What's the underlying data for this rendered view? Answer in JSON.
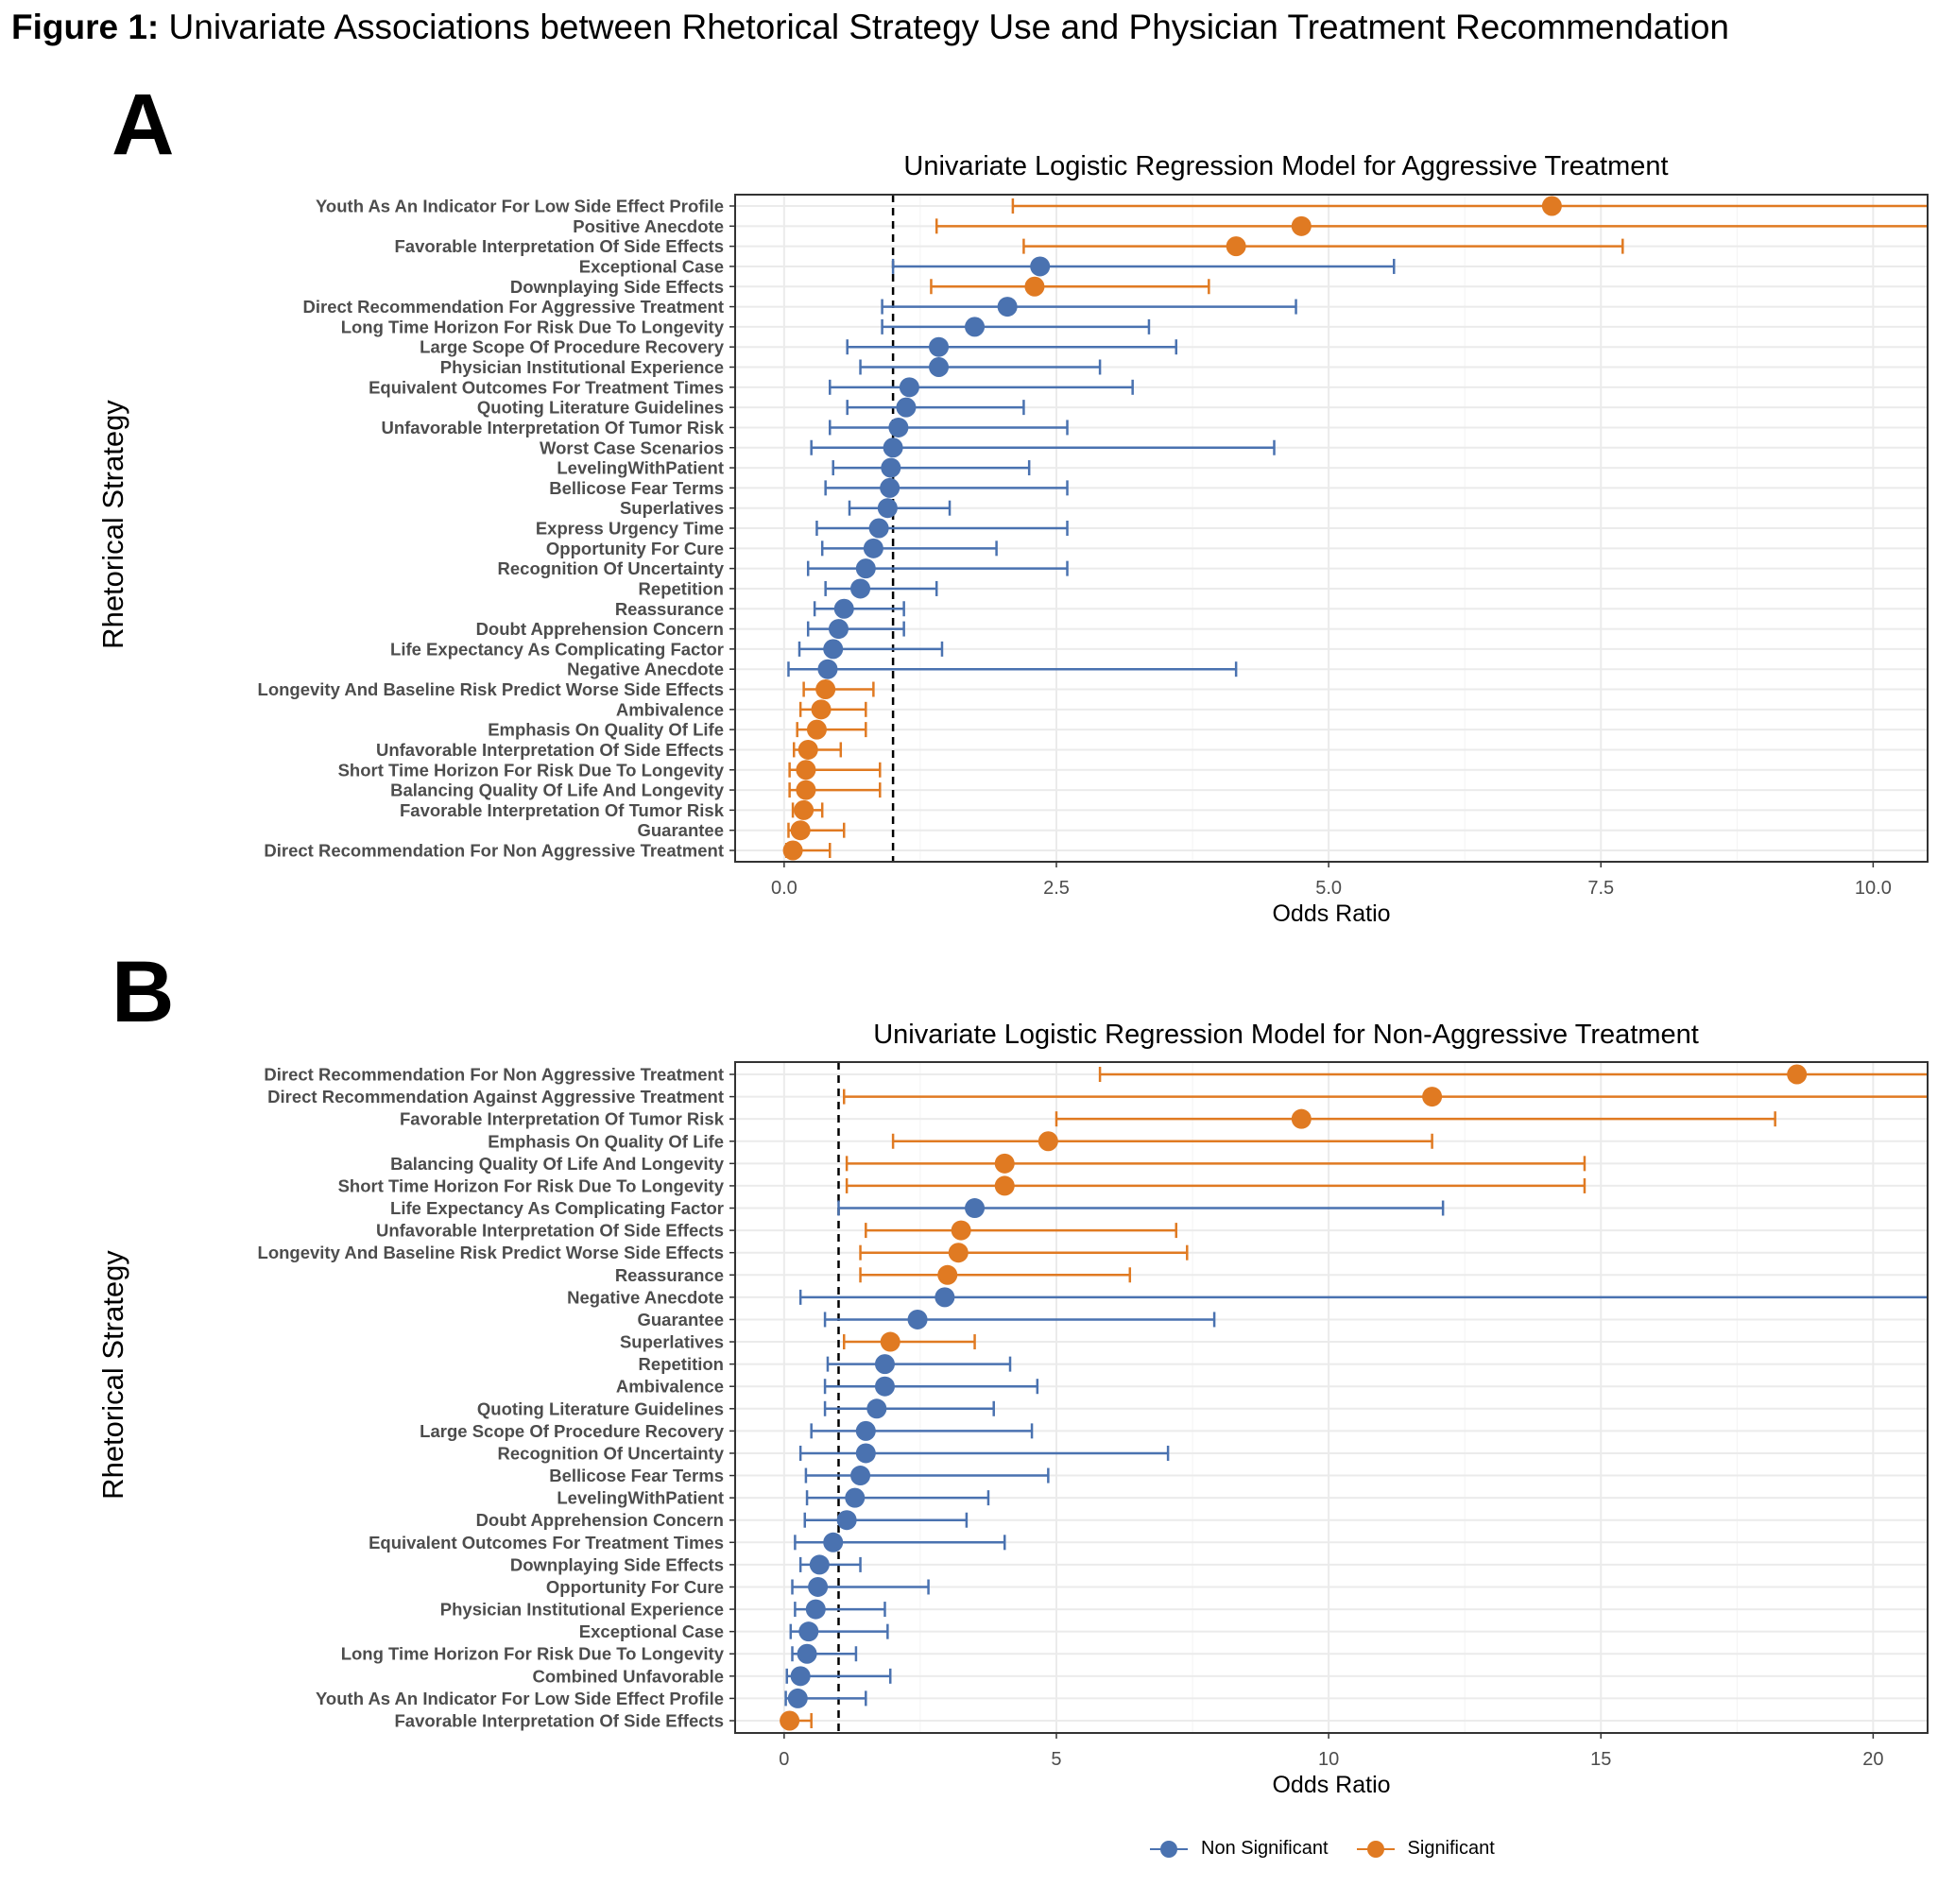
{
  "figure": {
    "title_bold": "Figure 1:",
    "title_rest": " Univariate Associations between Rhetorical Strategy Use and Physician Treatment Recommendation"
  },
  "colors": {
    "nonsig": "#4A72B0",
    "sig": "#E07A22",
    "grid": "#EBEBEB",
    "border": "#333333"
  },
  "legend": {
    "items": [
      {
        "label": "Non Significant",
        "color": "#4A72B0"
      },
      {
        "label": "Significant",
        "color": "#E07A22"
      }
    ]
  },
  "chart_data": [
    {
      "panel_label": "A",
      "type": "scatter",
      "title": "Univariate Logistic Regression Model for Aggressive Treatment",
      "xlabel": "Odds Ratio",
      "ylabel": "Rhetorical Strategy",
      "xlim": [
        -0.45,
        10.5
      ],
      "xticks": [
        0.0,
        2.5,
        5.0,
        7.5,
        10.0
      ],
      "xtick_labels": [
        "0.0",
        "2.5",
        "5.0",
        "7.5",
        "10.0"
      ],
      "reference_line": 1.0,
      "rows": [
        {
          "label": "Youth As An Indicator For Low Side Effect Profile",
          "or": 7.05,
          "lo": 2.1,
          "hi": 10.5,
          "sig": true
        },
        {
          "label": "Positive Anecdote",
          "or": 4.75,
          "lo": 1.4,
          "hi": 10.5,
          "sig": true
        },
        {
          "label": "Favorable Interpretation Of Side Effects",
          "or": 4.15,
          "lo": 2.2,
          "hi": 7.7,
          "sig": true
        },
        {
          "label": "Exceptional Case",
          "or": 2.35,
          "lo": 1.0,
          "hi": 5.6,
          "sig": false
        },
        {
          "label": "Downplaying Side Effects",
          "or": 2.3,
          "lo": 1.35,
          "hi": 3.9,
          "sig": true
        },
        {
          "label": "Direct Recommendation For Aggressive Treatment",
          "or": 2.05,
          "lo": 0.9,
          "hi": 4.7,
          "sig": false
        },
        {
          "label": "Long Time Horizon For Risk Due To Longevity",
          "or": 1.75,
          "lo": 0.9,
          "hi": 3.35,
          "sig": false
        },
        {
          "label": "Large Scope Of Procedure Recovery",
          "or": 1.42,
          "lo": 0.58,
          "hi": 3.6,
          "sig": false
        },
        {
          "label": "Physician Institutional Experience",
          "or": 1.42,
          "lo": 0.7,
          "hi": 2.9,
          "sig": false
        },
        {
          "label": "Equivalent Outcomes For Treatment Times",
          "or": 1.15,
          "lo": 0.42,
          "hi": 3.2,
          "sig": false
        },
        {
          "label": "Quoting Literature Guidelines",
          "or": 1.12,
          "lo": 0.58,
          "hi": 2.2,
          "sig": false
        },
        {
          "label": "Unfavorable Interpretation Of Tumor Risk",
          "or": 1.05,
          "lo": 0.42,
          "hi": 2.6,
          "sig": false
        },
        {
          "label": "Worst Case Scenarios",
          "or": 1.0,
          "lo": 0.25,
          "hi": 4.5,
          "sig": false
        },
        {
          "label": "LevelingWithPatient",
          "or": 0.98,
          "lo": 0.45,
          "hi": 2.25,
          "sig": false
        },
        {
          "label": "Bellicose Fear Terms",
          "or": 0.97,
          "lo": 0.38,
          "hi": 2.6,
          "sig": false
        },
        {
          "label": "Superlatives",
          "or": 0.95,
          "lo": 0.6,
          "hi": 1.52,
          "sig": false
        },
        {
          "label": "Express Urgency Time",
          "or": 0.87,
          "lo": 0.3,
          "hi": 2.6,
          "sig": false
        },
        {
          "label": "Opportunity For Cure",
          "or": 0.82,
          "lo": 0.35,
          "hi": 1.95,
          "sig": false
        },
        {
          "label": "Recognition Of Uncertainty",
          "or": 0.75,
          "lo": 0.22,
          "hi": 2.6,
          "sig": false
        },
        {
          "label": "Repetition",
          "or": 0.7,
          "lo": 0.38,
          "hi": 1.4,
          "sig": false
        },
        {
          "label": "Reassurance",
          "or": 0.55,
          "lo": 0.28,
          "hi": 1.1,
          "sig": false
        },
        {
          "label": "Doubt Apprehension Concern",
          "or": 0.5,
          "lo": 0.22,
          "hi": 1.1,
          "sig": false
        },
        {
          "label": "Life Expectancy As Complicating Factor",
          "or": 0.45,
          "lo": 0.14,
          "hi": 1.45,
          "sig": false
        },
        {
          "label": "Negative Anecdote",
          "or": 0.4,
          "lo": 0.04,
          "hi": 4.15,
          "sig": false
        },
        {
          "label": "Longevity And Baseline Risk Predict Worse Side Effects",
          "or": 0.38,
          "lo": 0.18,
          "hi": 0.82,
          "sig": true
        },
        {
          "label": "Ambivalence",
          "or": 0.34,
          "lo": 0.15,
          "hi": 0.75,
          "sig": true
        },
        {
          "label": "Emphasis On Quality Of Life",
          "or": 0.3,
          "lo": 0.12,
          "hi": 0.75,
          "sig": true
        },
        {
          "label": "Unfavorable Interpretation Of Side Effects",
          "or": 0.22,
          "lo": 0.09,
          "hi": 0.52,
          "sig": true
        },
        {
          "label": "Short Time Horizon For Risk Due To Longevity",
          "or": 0.2,
          "lo": 0.05,
          "hi": 0.88,
          "sig": true
        },
        {
          "label": "Balancing Quality Of Life And Longevity",
          "or": 0.2,
          "lo": 0.05,
          "hi": 0.88,
          "sig": true
        },
        {
          "label": "Favorable Interpretation Of Tumor Risk",
          "or": 0.18,
          "lo": 0.08,
          "hi": 0.35,
          "sig": true
        },
        {
          "label": "Guarantee",
          "or": 0.15,
          "lo": 0.04,
          "hi": 0.55,
          "sig": true
        },
        {
          "label": "Direct Recommendation For Non Aggressive Treatment",
          "or": 0.08,
          "lo": 0.02,
          "hi": 0.42,
          "sig": true
        }
      ]
    },
    {
      "panel_label": "B",
      "type": "scatter",
      "title": "Univariate Logistic Regression Model for Non-Aggressive Treatment",
      "xlabel": "Odds Ratio",
      "ylabel": "Rhetorical Strategy",
      "xlim": [
        -0.9,
        21.0
      ],
      "xticks": [
        0,
        5,
        10,
        15,
        20
      ],
      "xtick_labels": [
        "0",
        "5",
        "10",
        "15",
        "20"
      ],
      "reference_line": 1.0,
      "rows": [
        {
          "label": "Direct Recommendation For Non Aggressive Treatment",
          "or": 18.6,
          "lo": 5.8,
          "hi": 21.0,
          "sig": true
        },
        {
          "label": "Direct Recommendation Against Aggressive Treatment",
          "or": 11.9,
          "lo": 1.1,
          "hi": 21.0,
          "sig": true
        },
        {
          "label": "Favorable Interpretation Of Tumor Risk",
          "or": 9.5,
          "lo": 5.0,
          "hi": 18.2,
          "sig": true
        },
        {
          "label": "Emphasis On Quality Of Life",
          "or": 4.85,
          "lo": 2.0,
          "hi": 11.9,
          "sig": true
        },
        {
          "label": "Balancing Quality Of Life And Longevity",
          "or": 4.05,
          "lo": 1.15,
          "hi": 14.7,
          "sig": true
        },
        {
          "label": "Short Time Horizon For Risk Due To Longevity",
          "or": 4.05,
          "lo": 1.15,
          "hi": 14.7,
          "sig": true
        },
        {
          "label": "Life Expectancy As Complicating Factor",
          "or": 3.5,
          "lo": 1.0,
          "hi": 12.1,
          "sig": false
        },
        {
          "label": "Unfavorable Interpretation Of Side Effects",
          "or": 3.25,
          "lo": 1.5,
          "hi": 7.2,
          "sig": true
        },
        {
          "label": "Longevity And Baseline Risk Predict Worse Side Effects",
          "or": 3.2,
          "lo": 1.4,
          "hi": 7.4,
          "sig": true
        },
        {
          "label": "Reassurance",
          "or": 3.0,
          "lo": 1.4,
          "hi": 6.35,
          "sig": true
        },
        {
          "label": "Negative Anecdote",
          "or": 2.95,
          "lo": 0.3,
          "hi": 21.0,
          "sig": false
        },
        {
          "label": "Guarantee",
          "or": 2.45,
          "lo": 0.75,
          "hi": 7.9,
          "sig": false
        },
        {
          "label": "Superlatives",
          "or": 1.95,
          "lo": 1.1,
          "hi": 3.5,
          "sig": true
        },
        {
          "label": "Repetition",
          "or": 1.85,
          "lo": 0.8,
          "hi": 4.15,
          "sig": false
        },
        {
          "label": "Ambivalence",
          "or": 1.85,
          "lo": 0.75,
          "hi": 4.65,
          "sig": false
        },
        {
          "label": "Quoting Literature Guidelines",
          "or": 1.7,
          "lo": 0.75,
          "hi": 3.85,
          "sig": false
        },
        {
          "label": "Large Scope Of Procedure Recovery",
          "or": 1.5,
          "lo": 0.5,
          "hi": 4.55,
          "sig": false
        },
        {
          "label": "Recognition Of Uncertainty",
          "or": 1.5,
          "lo": 0.3,
          "hi": 7.05,
          "sig": false
        },
        {
          "label": "Bellicose Fear Terms",
          "or": 1.4,
          "lo": 0.4,
          "hi": 4.85,
          "sig": false
        },
        {
          "label": "LevelingWithPatient",
          "or": 1.3,
          "lo": 0.42,
          "hi": 3.75,
          "sig": false
        },
        {
          "label": "Doubt Apprehension Concern",
          "or": 1.15,
          "lo": 0.38,
          "hi": 3.35,
          "sig": false
        },
        {
          "label": "Equivalent Outcomes For Treatment Times",
          "or": 0.9,
          "lo": 0.2,
          "hi": 4.05,
          "sig": false
        },
        {
          "label": "Downplaying Side Effects",
          "or": 0.65,
          "lo": 0.3,
          "hi": 1.4,
          "sig": false
        },
        {
          "label": "Opportunity For Cure",
          "or": 0.62,
          "lo": 0.15,
          "hi": 2.65,
          "sig": false
        },
        {
          "label": "Physician Institutional Experience",
          "or": 0.58,
          "lo": 0.2,
          "hi": 1.85,
          "sig": false
        },
        {
          "label": "Exceptional Case",
          "or": 0.45,
          "lo": 0.12,
          "hi": 1.9,
          "sig": false
        },
        {
          "label": "Long Time Horizon For Risk Due To Longevity",
          "or": 0.42,
          "lo": 0.15,
          "hi": 1.32,
          "sig": false
        },
        {
          "label": "Combined Unfavorable",
          "or": 0.3,
          "lo": 0.05,
          "hi": 1.95,
          "sig": false
        },
        {
          "label": "Youth As An Indicator For Low Side Effect Profile",
          "or": 0.25,
          "lo": 0.03,
          "hi": 1.5,
          "sig": false
        },
        {
          "label": "Favorable Interpretation Of Side Effects",
          "or": 0.1,
          "lo": 0.02,
          "hi": 0.5,
          "sig": true
        }
      ]
    }
  ]
}
